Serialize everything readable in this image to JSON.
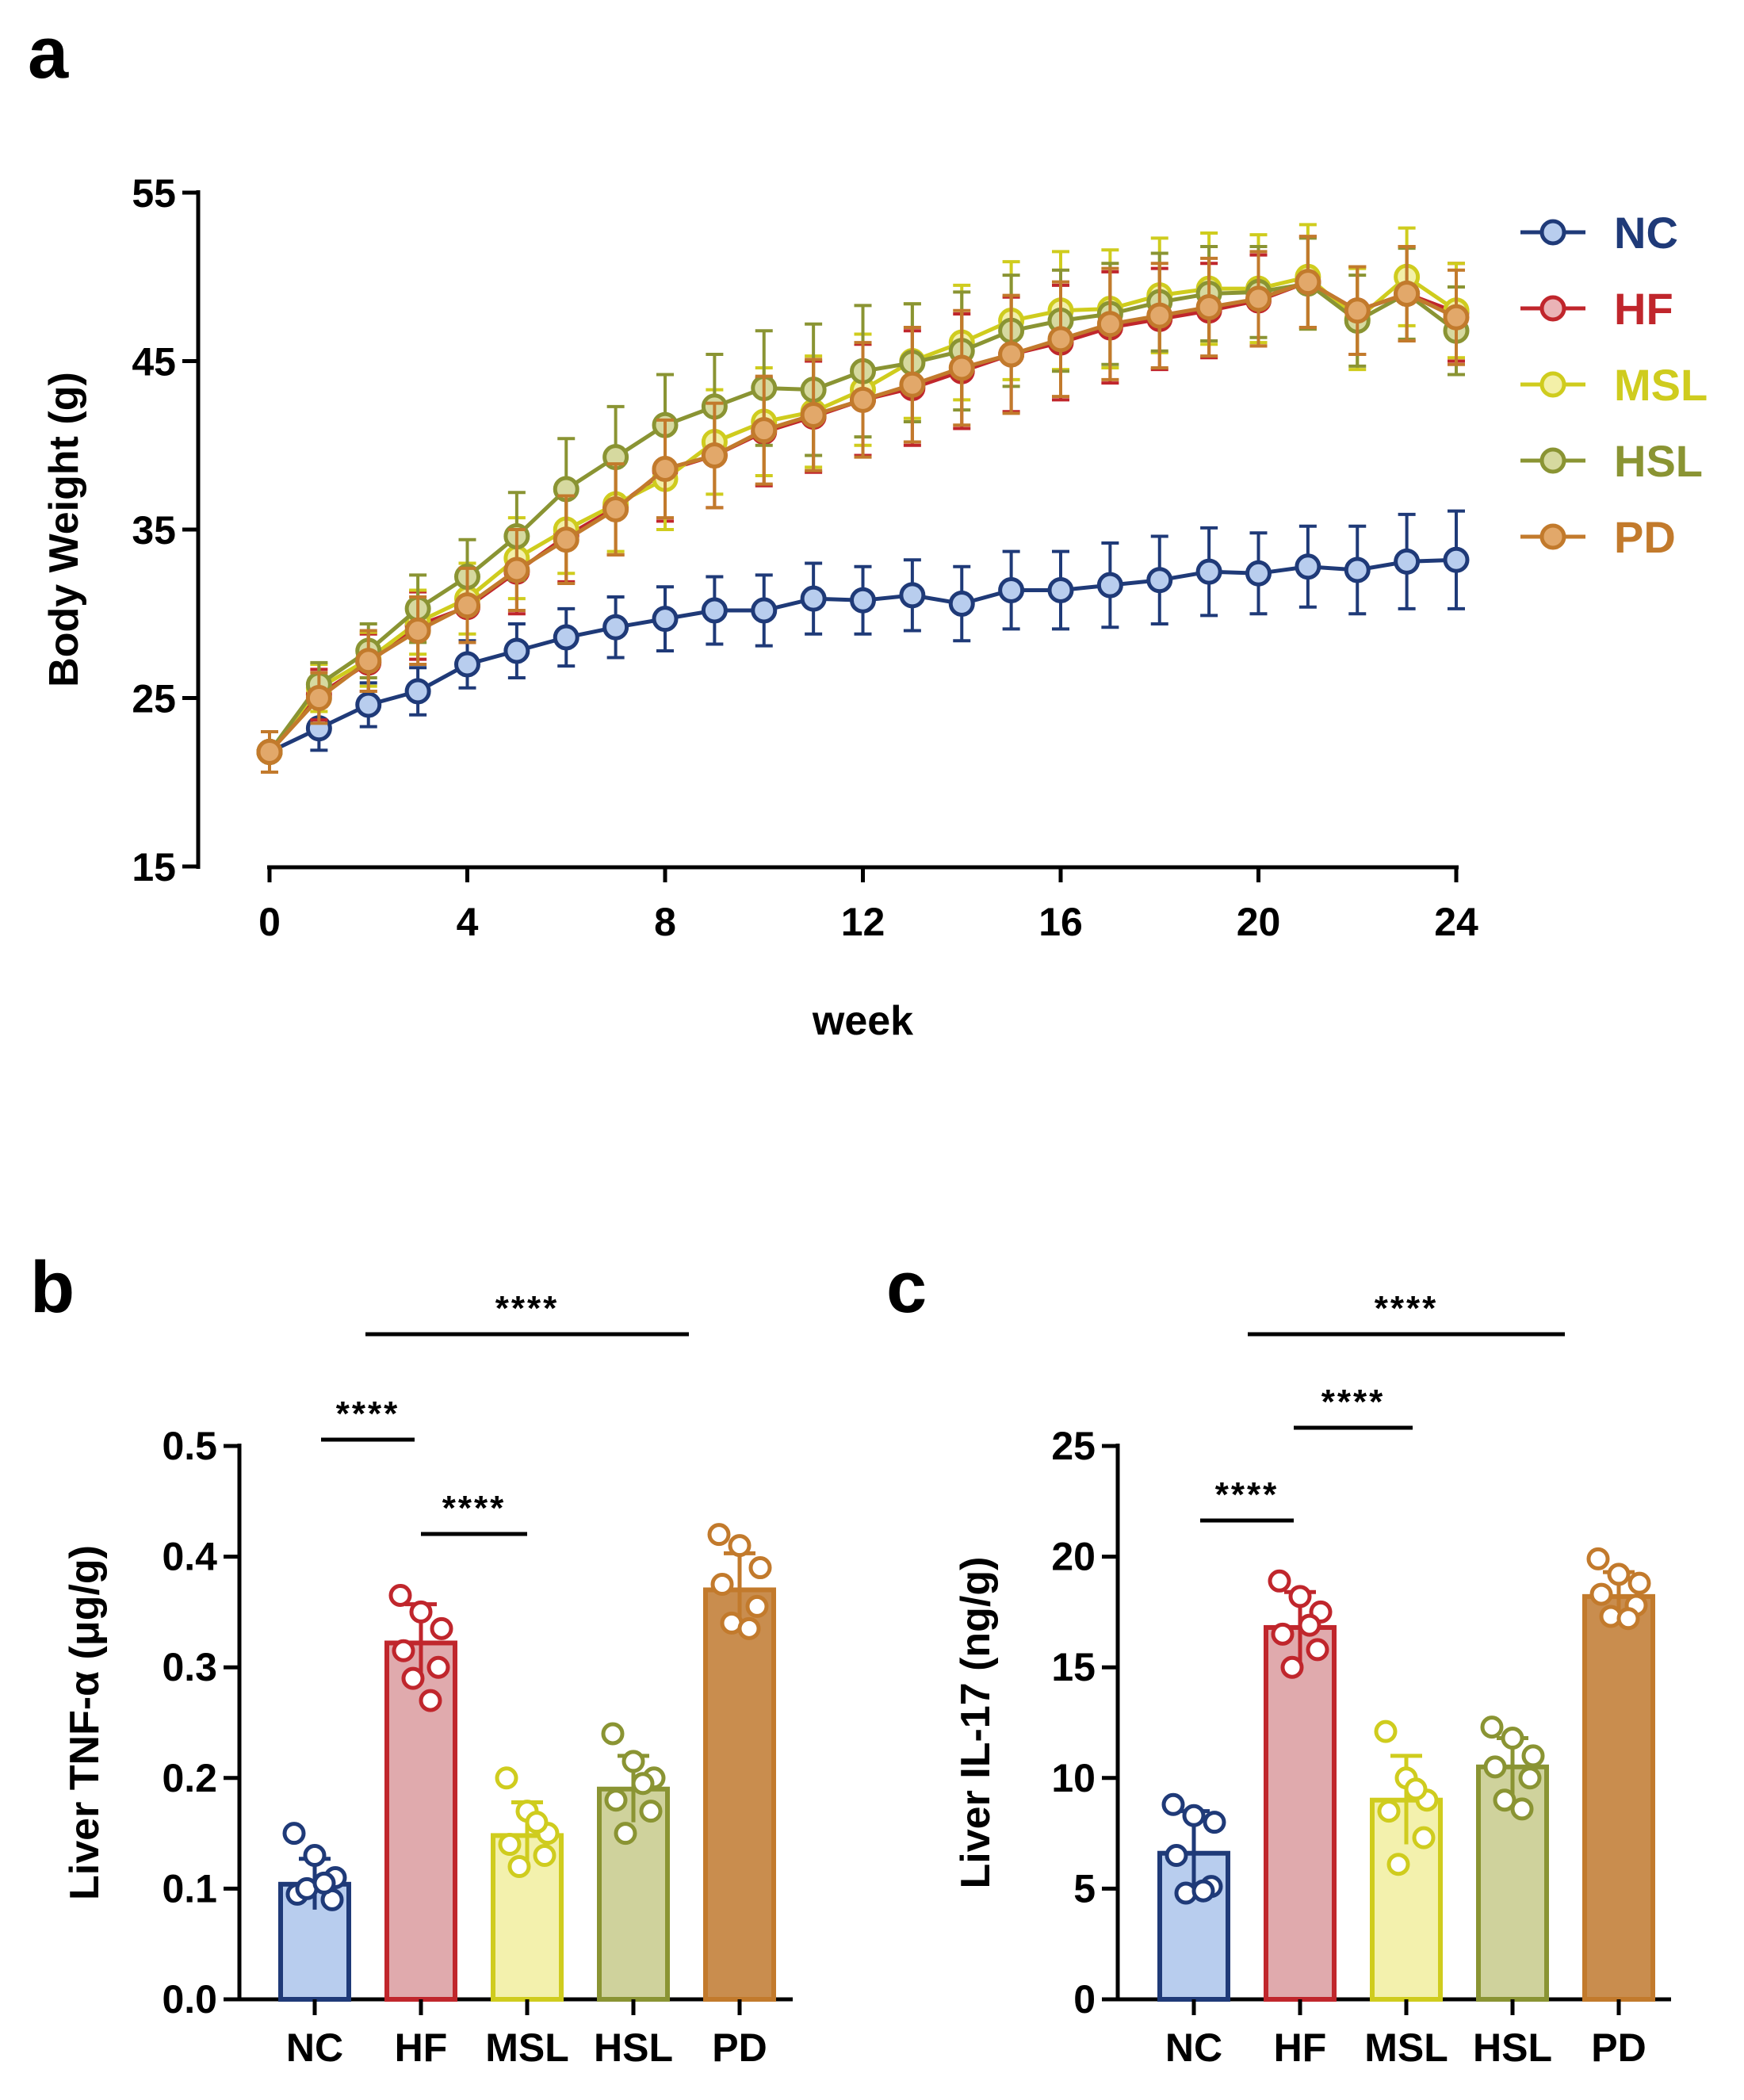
{
  "figure": {
    "panel_labels": [
      "a",
      "b",
      "c"
    ]
  },
  "chart_data": [
    {
      "id": "a",
      "type": "line",
      "xlabel": "week",
      "ylabel": "Body Weight (g)",
      "xlim": [
        0,
        24
      ],
      "ylim": [
        15,
        55
      ],
      "xticks": [
        0,
        4,
        8,
        12,
        16,
        20,
        24
      ],
      "yticks": [
        15,
        25,
        35,
        45,
        55
      ],
      "legend_position": "top-right",
      "x": [
        0,
        1,
        2,
        3,
        4,
        5,
        6,
        7,
        8,
        9,
        10,
        11,
        12,
        13,
        14,
        15,
        16,
        17,
        18,
        19,
        20,
        21,
        22,
        23,
        24
      ],
      "series": [
        {
          "name": "NC",
          "color": "#1f3a78",
          "fill": "#b8cdee",
          "values": [
            21.8,
            23.2,
            24.6,
            25.4,
            27.0,
            27.8,
            28.6,
            29.2,
            29.7,
            30.2,
            30.2,
            30.9,
            30.8,
            31.1,
            30.6,
            31.4,
            31.4,
            31.7,
            32.0,
            32.5,
            32.4,
            32.8,
            32.6,
            33.1,
            33.2
          ],
          "errors": [
            1.2,
            1.3,
            1.3,
            1.4,
            1.4,
            1.6,
            1.7,
            1.8,
            1.9,
            2.0,
            2.1,
            2.1,
            2.0,
            2.1,
            2.2,
            2.3,
            2.3,
            2.5,
            2.6,
            2.6,
            2.4,
            2.4,
            2.6,
            2.8,
            2.9
          ]
        },
        {
          "name": "HF",
          "color": "#c0262c",
          "fill": "#eab3b6",
          "values": [
            21.8,
            25.2,
            27.1,
            29.3,
            30.4,
            32.5,
            34.6,
            36.3,
            38.5,
            39.4,
            40.8,
            41.7,
            42.7,
            43.4,
            44.4,
            45.4,
            46.1,
            47.0,
            47.5,
            48.0,
            48.6,
            49.7,
            48.0,
            49.0,
            47.9
          ],
          "errors": [
            1.2,
            1.5,
            1.7,
            2.0,
            2.1,
            2.5,
            2.7,
            2.8,
            3.0,
            3.1,
            3.2,
            3.3,
            3.3,
            3.4,
            3.4,
            3.4,
            3.4,
            3.3,
            3.0,
            2.8,
            2.7,
            2.7,
            2.6,
            2.8,
            2.9
          ]
        },
        {
          "name": "MSL",
          "color": "#cfcc1e",
          "fill": "#f3f0a8",
          "values": [
            21.8,
            25.6,
            27.3,
            29.5,
            30.9,
            33.3,
            35.0,
            36.5,
            38.0,
            40.2,
            41.4,
            42.0,
            43.3,
            45.0,
            46.1,
            47.4,
            48.0,
            48.1,
            48.9,
            49.3,
            49.3,
            50.0,
            47.5,
            50.0,
            48.0
          ],
          "errors": [
            1.2,
            1.4,
            1.6,
            1.9,
            2.1,
            2.4,
            2.6,
            2.8,
            3.0,
            3.1,
            3.2,
            3.3,
            3.3,
            3.4,
            3.4,
            3.5,
            3.5,
            3.5,
            3.4,
            3.3,
            3.2,
            3.1,
            3.0,
            2.9,
            2.8
          ]
        },
        {
          "name": "HSL",
          "color": "#8a9433",
          "fill": "#d6d99f",
          "values": [
            21.8,
            25.8,
            27.8,
            30.3,
            32.2,
            34.6,
            37.4,
            39.3,
            41.2,
            42.3,
            43.4,
            43.3,
            44.4,
            44.9,
            45.6,
            46.8,
            47.4,
            47.8,
            48.5,
            49.0,
            49.1,
            49.6,
            47.4,
            49.0,
            46.8
          ],
          "errors": [
            1.2,
            1.3,
            1.6,
            2.0,
            2.2,
            2.6,
            3.0,
            3.0,
            3.0,
            3.1,
            3.4,
            3.9,
            3.9,
            3.5,
            3.5,
            3.3,
            3.0,
            3.0,
            2.9,
            2.8,
            2.7,
            2.7,
            2.7,
            2.7,
            2.6
          ]
        },
        {
          "name": "PD",
          "color": "#c27a2c",
          "fill": "#e2a86a",
          "values": [
            21.8,
            25.0,
            27.2,
            29.0,
            30.5,
            32.6,
            34.4,
            36.2,
            38.6,
            39.4,
            40.9,
            41.8,
            42.7,
            43.6,
            44.6,
            45.4,
            46.3,
            47.2,
            47.7,
            48.2,
            48.7,
            49.7,
            48.0,
            49.0,
            47.6
          ],
          "errors": [
            1.2,
            1.5,
            1.8,
            2.0,
            2.2,
            2.4,
            2.6,
            2.7,
            2.9,
            3.1,
            3.2,
            3.3,
            3.4,
            3.4,
            3.4,
            3.5,
            3.4,
            3.3,
            3.1,
            2.9,
            2.8,
            2.7,
            2.6,
            2.8,
            2.8
          ]
        }
      ]
    },
    {
      "id": "b",
      "type": "bar",
      "xlabel": "",
      "ylabel": "Liver TNF-α (μg/g)",
      "ylim": [
        0,
        0.5
      ],
      "yticks": [
        "0.0",
        "0.1",
        "0.2",
        "0.3",
        "0.4",
        "0.5"
      ],
      "categories": [
        "NC",
        "HF",
        "MSL",
        "HSL",
        "PD"
      ],
      "colors": [
        "#1f3a78",
        "#c0262c",
        "#cfcc1e",
        "#8a9433",
        "#c27a2c"
      ],
      "fills": [
        "#b8cdee",
        "#e0aaad",
        "#f3f1ad",
        "#cfd29c",
        "#c98d4e"
      ],
      "values": [
        0.104,
        0.322,
        0.148,
        0.19,
        0.37
      ],
      "errors": [
        0.023,
        0.035,
        0.03,
        0.03,
        0.033
      ],
      "points": [
        [
          0.15,
          0.13,
          0.11,
          0.095,
          0.09,
          0.1,
          0.105
        ],
        [
          0.365,
          0.35,
          0.335,
          0.315,
          0.3,
          0.29,
          0.27
        ],
        [
          0.2,
          0.17,
          0.15,
          0.14,
          0.13,
          0.12,
          0.16
        ],
        [
          0.24,
          0.215,
          0.2,
          0.18,
          0.17,
          0.15,
          0.195
        ],
        [
          0.42,
          0.41,
          0.39,
          0.375,
          0.355,
          0.34,
          0.335
        ]
      ],
      "significance": [
        {
          "from": "NC",
          "to": "HF",
          "label": "****"
        },
        {
          "from": "HF",
          "to": "MSL",
          "label": "****"
        },
        {
          "from": "HF",
          "to": "HSL",
          "label": "****"
        }
      ]
    },
    {
      "id": "c",
      "type": "bar",
      "xlabel": "",
      "ylabel": "Liver IL-17 (ng/g)",
      "ylim": [
        0,
        25
      ],
      "yticks": [
        "0",
        "5",
        "10",
        "15",
        "20",
        "25"
      ],
      "categories": [
        "NC",
        "HF",
        "MSL",
        "HSL",
        "PD"
      ],
      "colors": [
        "#1f3a78",
        "#c0262c",
        "#cfcc1e",
        "#8a9433",
        "#c27a2c"
      ],
      "fills": [
        "#b8cdee",
        "#e0aaad",
        "#f3f1ad",
        "#cfd29c",
        "#c98d4e"
      ],
      "values": [
        6.6,
        16.8,
        9.0,
        10.5,
        18.2
      ],
      "errors": [
        1.9,
        1.6,
        2.0,
        1.3,
        1.1
      ],
      "points": [
        [
          8.8,
          8.3,
          8.0,
          6.5,
          5.1,
          4.8,
          4.9
        ],
        [
          18.9,
          18.2,
          17.5,
          16.5,
          15.8,
          15.0,
          16.9
        ],
        [
          12.1,
          10.0,
          9.0,
          8.5,
          7.3,
          6.1,
          9.5
        ],
        [
          12.3,
          11.8,
          11.0,
          10.5,
          10.0,
          9.0,
          8.6
        ],
        [
          19.9,
          19.2,
          18.8,
          18.3,
          17.8,
          17.3,
          17.2
        ]
      ],
      "significance": [
        {
          "from": "NC",
          "to": "HF",
          "label": "****"
        },
        {
          "from": "HF",
          "to": "MSL",
          "label": "****"
        },
        {
          "from": "HF",
          "to": "HSL",
          "label": "****"
        }
      ]
    }
  ]
}
